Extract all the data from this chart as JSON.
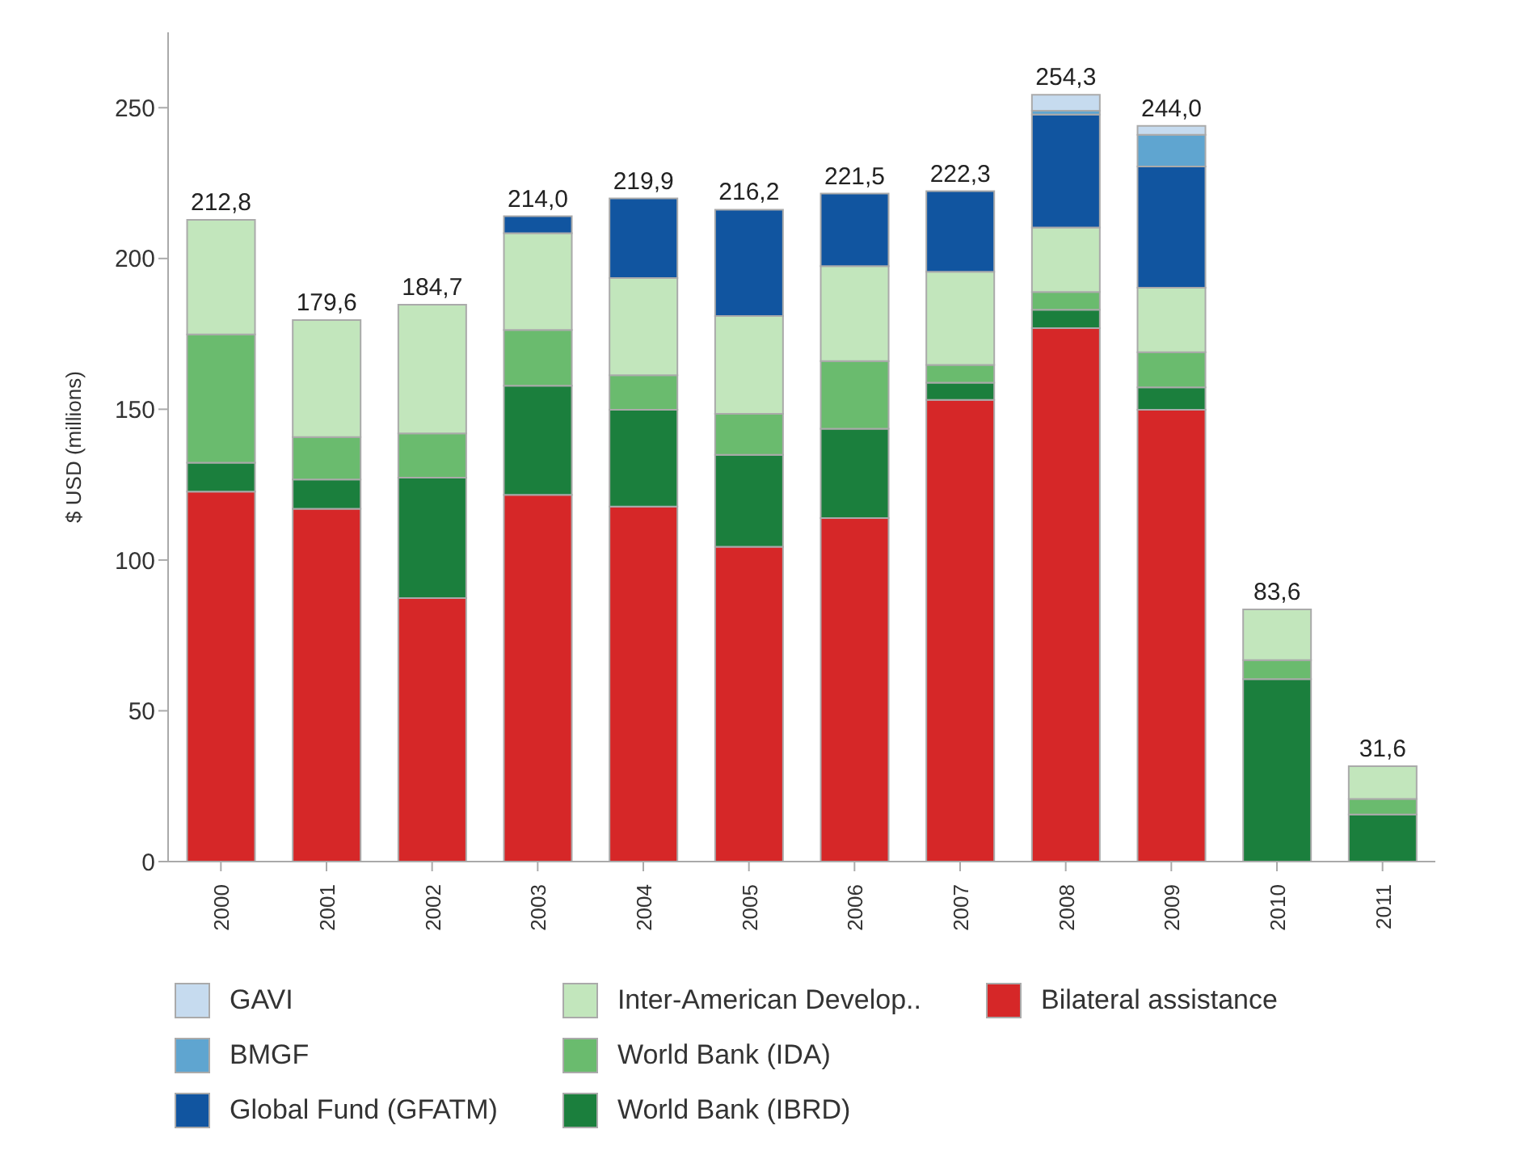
{
  "chart_data": {
    "type": "bar",
    "stacked": true,
    "ylabel": "$ USD (millions)",
    "categories": [
      "2000",
      "2001",
      "2002",
      "2003",
      "2004",
      "2005",
      "2006",
      "2007",
      "2008",
      "2009",
      "2010",
      "2011"
    ],
    "series": [
      {
        "name": "Bilateral assistance",
        "color": "#d62728",
        "values": [
          122.7,
          117.0,
          87.4,
          121.6,
          117.7,
          104.4,
          113.9,
          153.1,
          176.9,
          149.8,
          null,
          null
        ]
      },
      {
        "name": "World Bank (IBRD)",
        "color": "#1b7f3d",
        "values": [
          9.6,
          9.7,
          39.9,
          36.2,
          32.1,
          30.5,
          29.6,
          5.7,
          6.1,
          7.5,
          60.5,
          15.6
        ]
      },
      {
        "name": "World Bank (IDA)",
        "color": "#6abb6e",
        "values": [
          42.5,
          14.1,
          14.7,
          18.5,
          11.5,
          13.6,
          22.5,
          5.9,
          5.9,
          11.6,
          6.3,
          5.2
        ]
      },
      {
        "name": "Inter-American Develop..",
        "color": "#c2e6bc",
        "values": [
          38.0,
          38.8,
          42.7,
          32.1,
          32.2,
          32.4,
          31.5,
          30.9,
          21.4,
          21.4,
          16.8,
          10.8
        ]
      },
      {
        "name": "Global Fund (GFATM)",
        "color": "#1155a0",
        "values": [
          null,
          null,
          null,
          5.6,
          26.4,
          35.3,
          24.0,
          26.7,
          37.4,
          40.2,
          null,
          null
        ]
      },
      {
        "name": "BMGF",
        "color": "#5fa5d0",
        "values": [
          null,
          null,
          null,
          null,
          null,
          null,
          null,
          null,
          1.3,
          10.5,
          null,
          null
        ]
      },
      {
        "name": "GAVI",
        "color": "#c6dbef",
        "values": [
          null,
          null,
          null,
          null,
          null,
          null,
          null,
          null,
          5.3,
          3.0,
          null,
          null
        ]
      }
    ],
    "totals": [
      "212,8",
      "179,6",
      "184,7",
      "214,0",
      "219,9",
      "216,2",
      "221,5",
      "222,3",
      "254,3",
      "244,0",
      "83,6",
      "31,6"
    ],
    "ylim": [
      0,
      275
    ],
    "yticks": [
      0,
      50,
      100,
      150,
      200,
      250
    ],
    "grid": false,
    "legend": "bottom"
  }
}
